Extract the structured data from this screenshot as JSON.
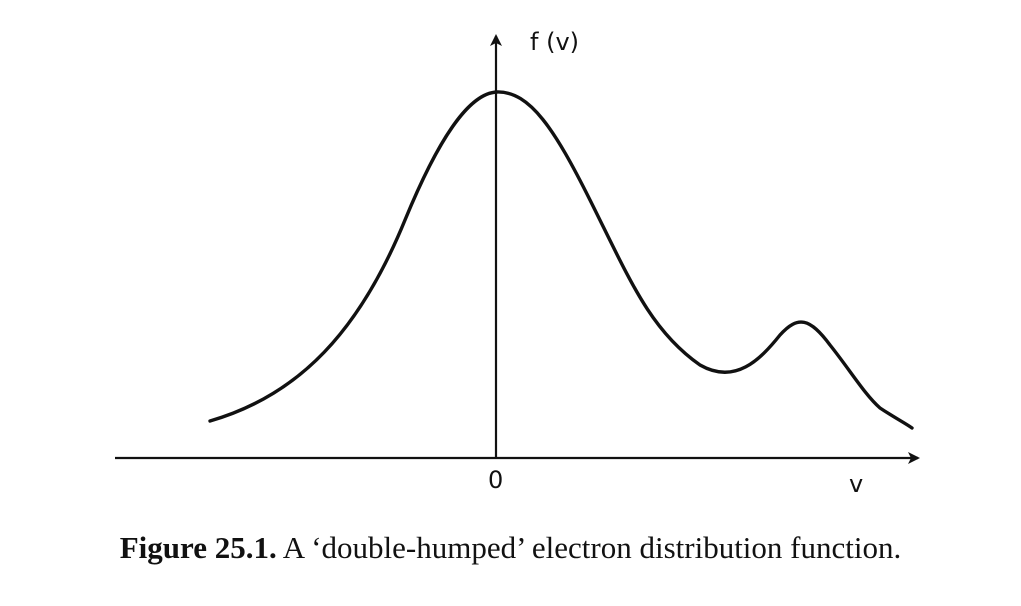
{
  "diagram": {
    "y_axis_label": "f (v)",
    "x_axis_label": "v",
    "origin_label": "0"
  },
  "caption": {
    "label": "Figure 25.1.",
    "text": "A ‘double-humped’ electron distribution function."
  },
  "colors": {
    "ink": "#111111",
    "background": "#ffffff"
  }
}
